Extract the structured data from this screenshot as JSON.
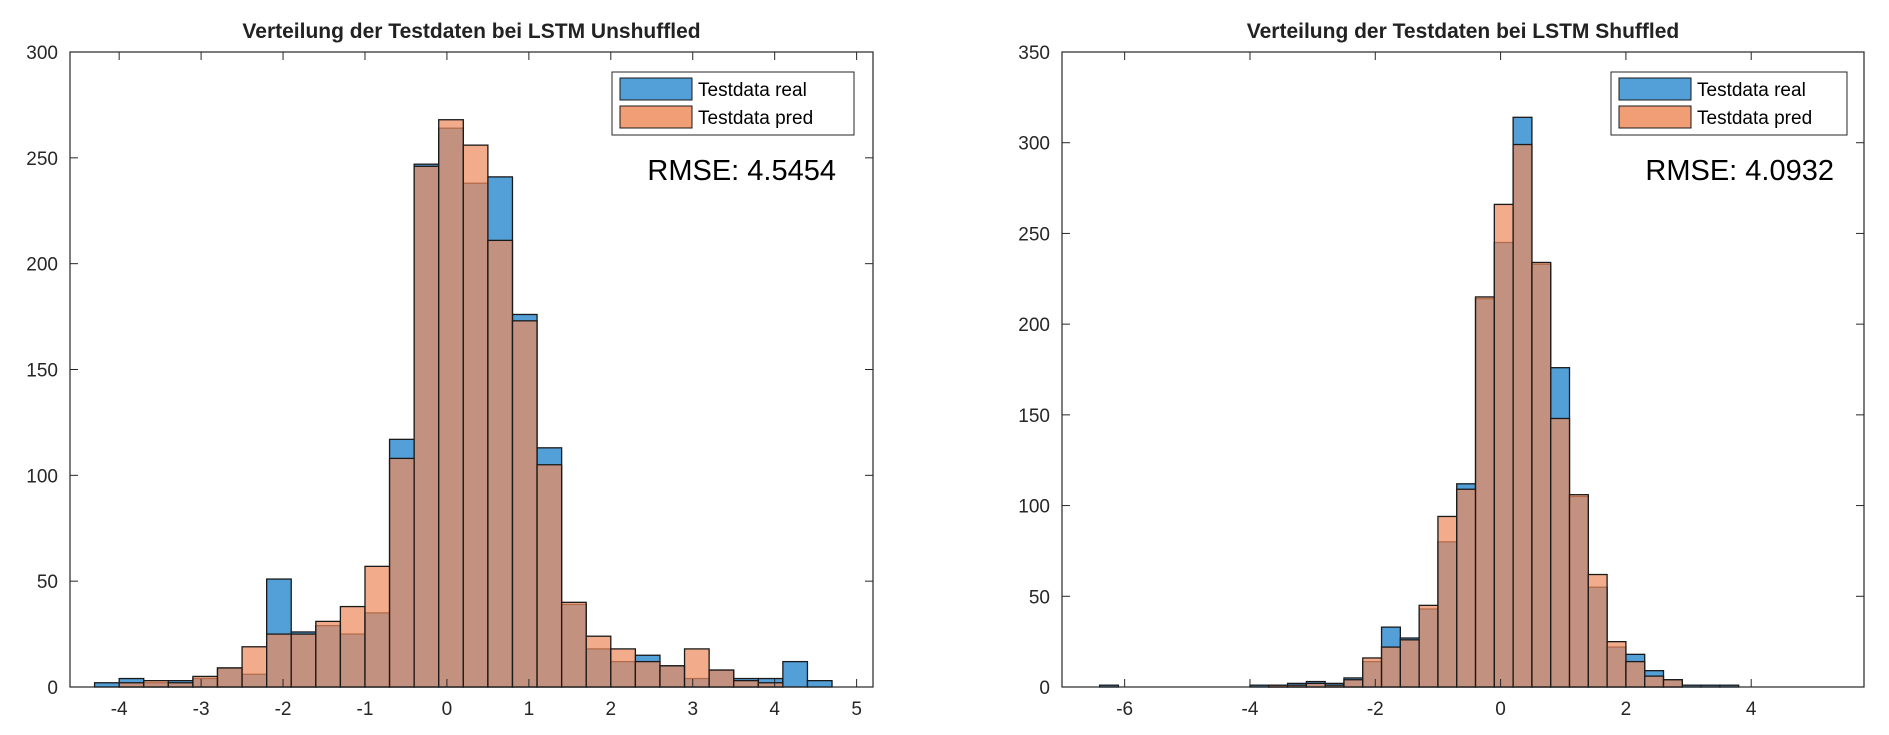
{
  "chart_data": [
    {
      "type": "histogram",
      "title": "Verteilung der Testdaten bei LSTM Unshuffled",
      "xlim": [
        -4.6,
        5.2
      ],
      "ylim": [
        0,
        300
      ],
      "xticks": [
        -4,
        -3,
        -2,
        -1,
        0,
        1,
        2,
        3,
        4,
        5
      ],
      "yticks": [
        0,
        50,
        100,
        150,
        200,
        250,
        300
      ],
      "bin_width": 0.3,
      "bin_edges_start": -4.3,
      "grid": false,
      "legend_position": "top-right",
      "series": [
        {
          "name": "Testdata real",
          "color": "#4a9ad6",
          "values": [
            2,
            4,
            2,
            3,
            4,
            9,
            6,
            51,
            26,
            29,
            25,
            35,
            117,
            247,
            264,
            238,
            241,
            176,
            113,
            39,
            18,
            12,
            15,
            10,
            4,
            8,
            4,
            4,
            12,
            3
          ]
        },
        {
          "name": "Testdata pred",
          "color": "#ef8c5e",
          "values": [
            0,
            2,
            3,
            2,
            5,
            9,
            19,
            25,
            25,
            31,
            38,
            57,
            108,
            246,
            268,
            256,
            211,
            173,
            105,
            40,
            24,
            18,
            12,
            10,
            18,
            8,
            3,
            2,
            0,
            0
          ]
        }
      ],
      "annotation": "RMSE: 4.5454"
    },
    {
      "type": "histogram",
      "title": "Verteilung der Testdaten bei LSTM Shuffled",
      "xlim": [
        -7,
        5.8
      ],
      "ylim": [
        0,
        350
      ],
      "xticks": [
        -6,
        -4,
        -2,
        0,
        2,
        4
      ],
      "yticks": [
        0,
        50,
        100,
        150,
        200,
        250,
        300,
        350
      ],
      "bin_width": 0.3,
      "bin_edges_start": -6.4,
      "grid": false,
      "legend_position": "top-right",
      "series": [
        {
          "name": "Testdata real",
          "color": "#4a9ad6",
          "values": [
            1,
            0,
            0,
            0,
            0,
            0,
            0,
            0,
            1,
            1,
            2,
            3,
            2,
            5,
            14,
            33,
            27,
            43,
            80,
            112,
            214,
            245,
            314,
            233,
            176,
            105,
            55,
            22,
            18,
            9,
            4,
            1,
            1,
            1
          ]
        },
        {
          "name": "Testdata pred",
          "color": "#ef8c5e",
          "values": [
            0,
            0,
            0,
            0,
            0,
            0,
            0,
            0,
            0,
            1,
            1,
            2,
            1,
            4,
            16,
            22,
            26,
            45,
            94,
            109,
            215,
            266,
            299,
            234,
            148,
            106,
            62,
            25,
            14,
            6,
            4,
            0,
            0,
            0
          ]
        }
      ],
      "annotation": "RMSE: 4.0932"
    }
  ]
}
